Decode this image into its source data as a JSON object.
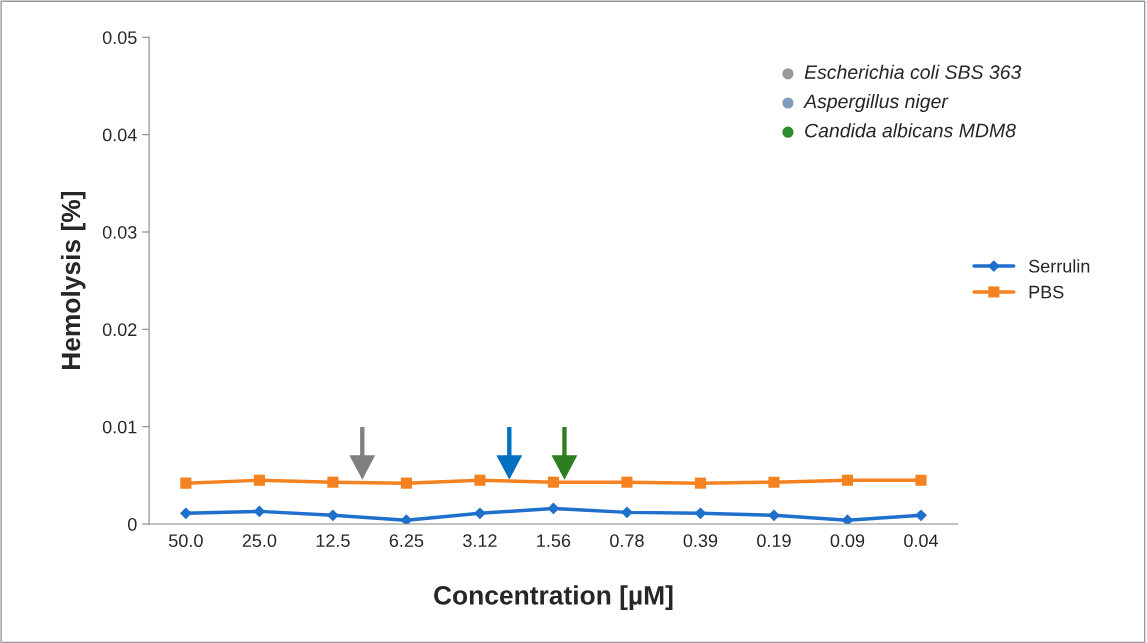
{
  "chart_data": {
    "type": "line",
    "xlabel": "Concentration [µM]",
    "ylabel": "Hemolysis [%]",
    "categories": [
      "50.0",
      "25.0",
      "12.5",
      "6.25",
      "3.12",
      "1.56",
      "0.78",
      "0.39",
      "0.19",
      "0.09",
      "0.04"
    ],
    "series": [
      {
        "name": "Serrulin",
        "color": "#1f6fcc",
        "marker": "diamond",
        "values": [
          0.0011,
          0.0013,
          0.0009,
          0.0004,
          0.0011,
          0.0016,
          0.0012,
          0.0011,
          0.0009,
          0.0004,
          0.0009
        ]
      },
      {
        "name": "PBS",
        "color": "#f58220",
        "marker": "square",
        "values": [
          0.0042,
          0.0045,
          0.0043,
          0.0042,
          0.0045,
          0.0043,
          0.0043,
          0.0042,
          0.0043,
          0.0045,
          0.0045
        ]
      }
    ],
    "ylim": [
      0,
      0.05
    ],
    "yticks": [
      0,
      0.01,
      0.02,
      0.03,
      0.04,
      0.05
    ],
    "grid": false,
    "legend": "right",
    "annotations": [
      "Escherichia coli SBS 363",
      "Aspergillus niger",
      "Candida albicans MDM8"
    ]
  }
}
